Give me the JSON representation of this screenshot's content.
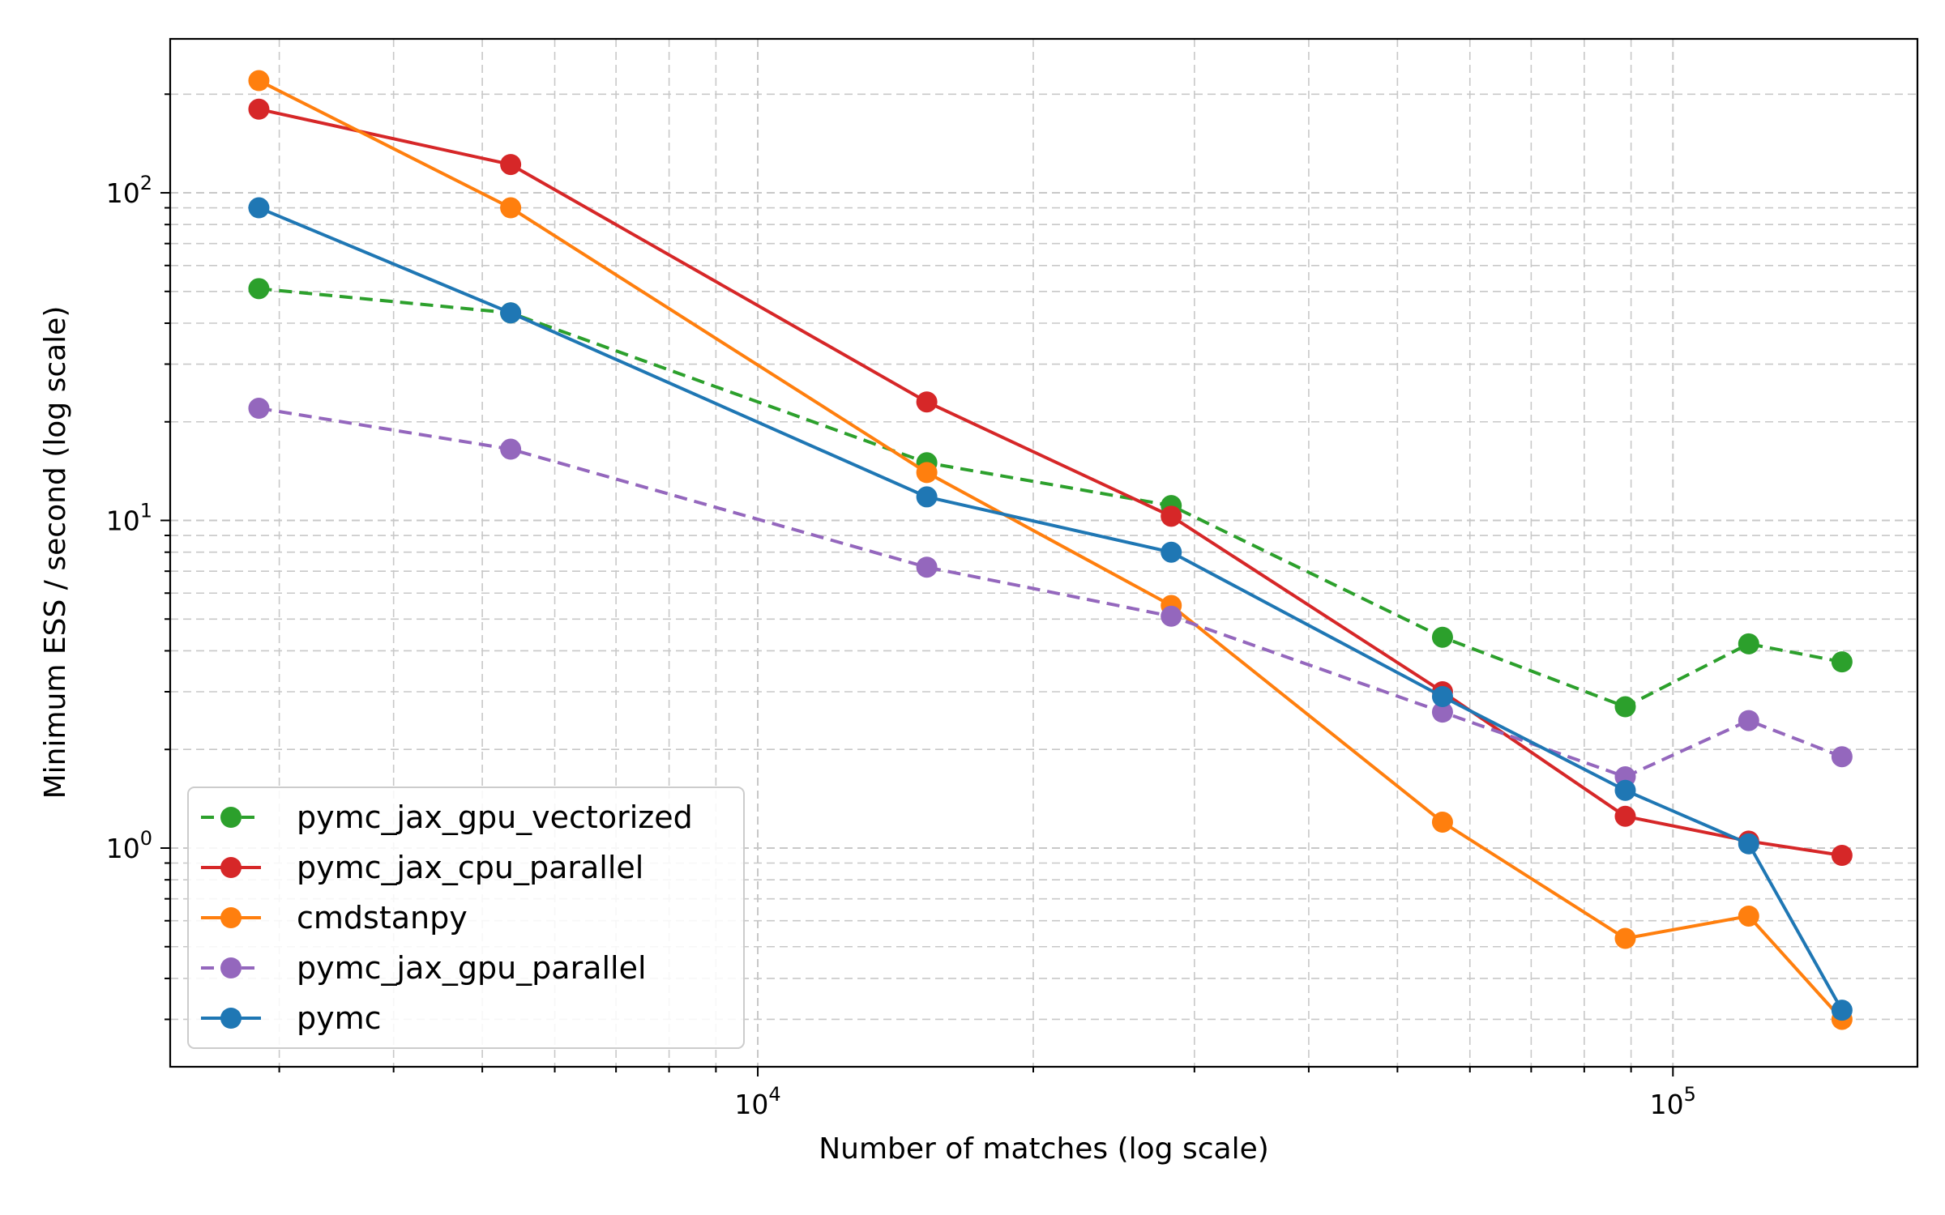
{
  "chart_data": {
    "type": "line",
    "title": "",
    "xlabel": "Number of matches (log scale)",
    "ylabel": "Minimum ESS / second (log scale)",
    "x_scale": "log",
    "y_scale": "log",
    "xlim": [
      2280,
      185000
    ],
    "ylim": [
      0.215,
      295
    ],
    "grid": "both (major and minor, dashed)",
    "legend_position": "lower-left",
    "x": [
      2850,
      5370,
      15300,
      28300,
      56000,
      88700,
      121000,
      153000
    ],
    "x_major_ticks": [
      {
        "value": 10000,
        "base": "10",
        "exp": "4"
      },
      {
        "value": 100000,
        "base": "10",
        "exp": "5"
      }
    ],
    "y_major_ticks": [
      {
        "value": 1,
        "base": "10",
        "exp": "0"
      },
      {
        "value": 10,
        "base": "10",
        "exp": "1"
      },
      {
        "value": 100,
        "base": "10",
        "exp": "2"
      }
    ],
    "series": [
      {
        "name": "pymc_jax_gpu_vectorized",
        "color": "#2ca02c",
        "dashed": true,
        "values": [
          51,
          43,
          15,
          11.1,
          4.4,
          2.7,
          4.2,
          3.7
        ]
      },
      {
        "name": "pymc_jax_cpu_parallel",
        "color": "#d62728",
        "dashed": false,
        "values": [
          180,
          122,
          23,
          10.3,
          3.0,
          1.25,
          1.05,
          0.95
        ]
      },
      {
        "name": "cmdstanpy",
        "color": "#ff7f0e",
        "dashed": false,
        "values": [
          220,
          90,
          14,
          5.5,
          1.2,
          0.53,
          0.62,
          0.3
        ]
      },
      {
        "name": "pymc_jax_gpu_parallel",
        "color": "#9467bd",
        "dashed": true,
        "values": [
          22,
          16.5,
          7.2,
          5.1,
          2.6,
          1.65,
          2.45,
          1.9
        ]
      },
      {
        "name": "pymc",
        "color": "#1f77b4",
        "dashed": false,
        "values": [
          90,
          43,
          11.8,
          8.0,
          2.9,
          1.5,
          1.03,
          0.32
        ]
      }
    ]
  }
}
